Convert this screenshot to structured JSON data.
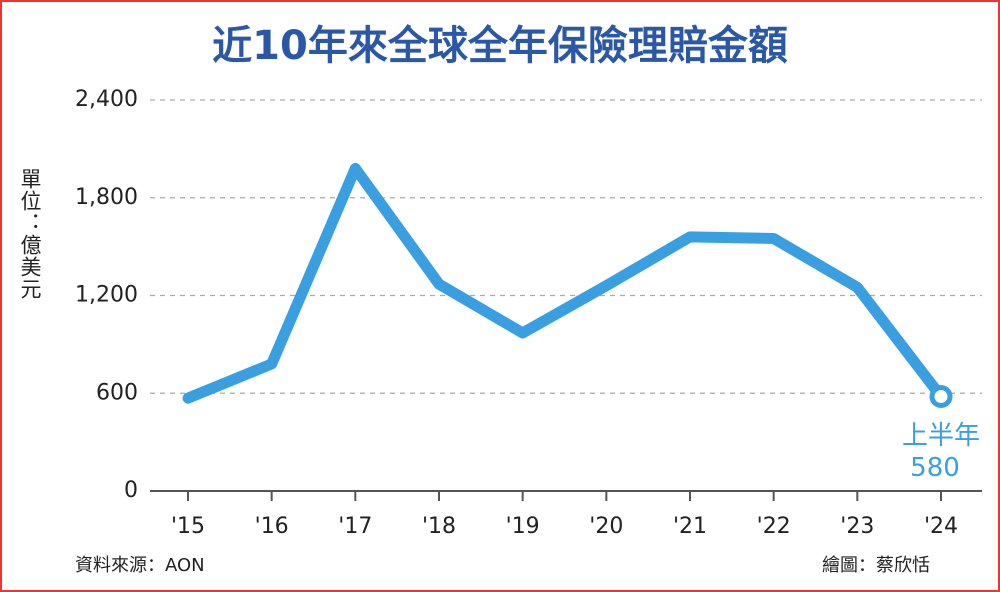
{
  "chart_data": {
    "type": "line",
    "title": "近10年來全球全年保險理賠金額",
    "y_label": "單位：億美元",
    "categories": [
      "'15",
      "'16",
      "'17",
      "'18",
      "'19",
      "'20",
      "'21",
      "'22",
      "'23",
      "'24"
    ],
    "values": [
      570,
      780,
      1980,
      1270,
      970,
      1260,
      1560,
      1550,
      1250,
      580
    ],
    "color": "#3a9fe0",
    "ylim": [
      0,
      2400
    ],
    "yticks": [
      0,
      600,
      {
        "value": 1200,
        "label": "1,200"
      },
      {
        "value": 1800,
        "label": "1,800"
      },
      {
        "value": 2400,
        "label": "2,400"
      }
    ],
    "grid": true,
    "annotation": "上半年",
    "source": "資料來源：AON",
    "credit": "繪圖：蔡欣恬"
  }
}
